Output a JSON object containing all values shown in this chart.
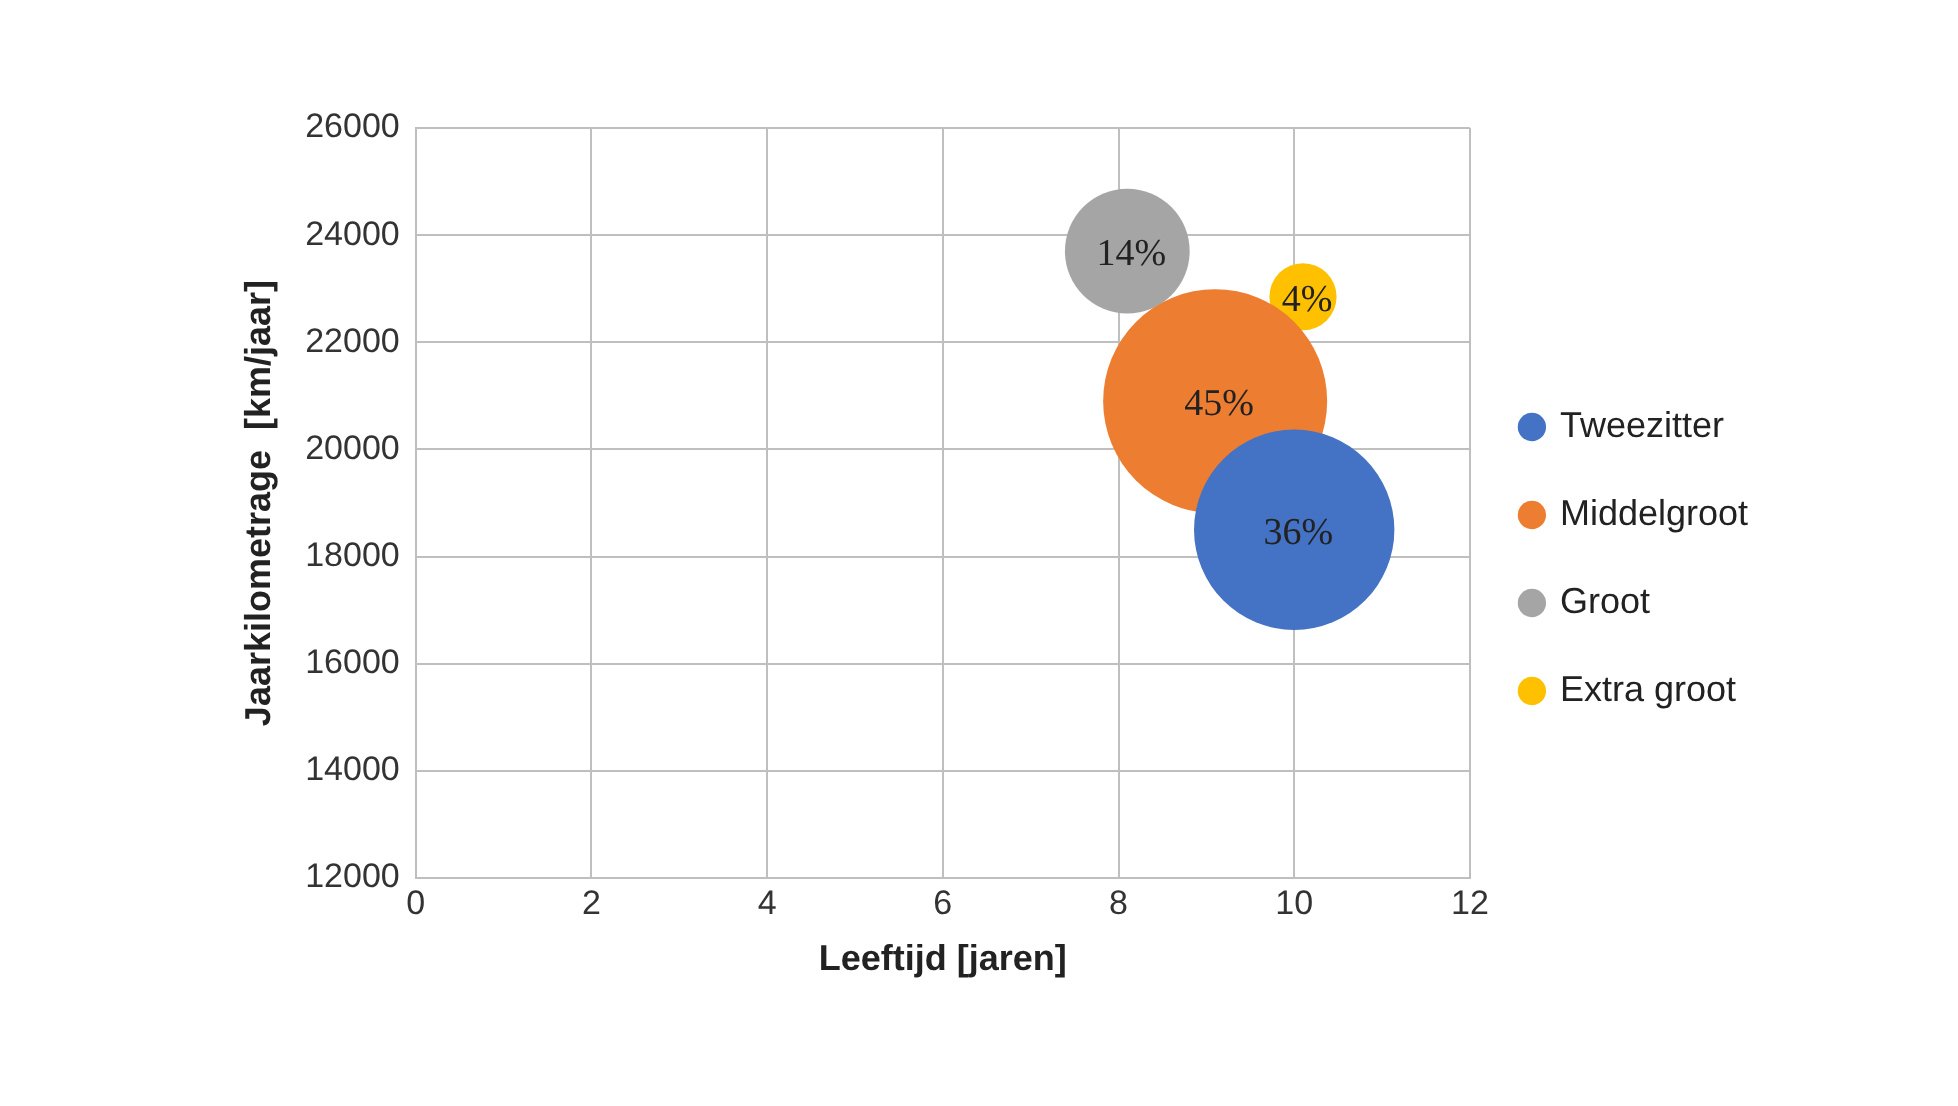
{
  "chart_data": {
    "type": "bubble",
    "xlabel": "Leeftijd [jaren]",
    "ylabel": "Jaarkilometrage  [km/jaar]",
    "xlim": [
      0,
      12
    ],
    "xticks": [
      0,
      2,
      4,
      6,
      8,
      10,
      12
    ],
    "ylim": [
      12000,
      26000
    ],
    "yticks": [
      12000,
      14000,
      16000,
      18000,
      20000,
      22000,
      24000,
      26000
    ],
    "grid": true,
    "legend": "right",
    "series": [
      {
        "name": "Tweezitter",
        "color": "#4472c4",
        "x": [
          10
        ],
        "values": [
          18500
        ],
        "sizes": [
          0.8
        ]
      },
      {
        "name": "Middelgroot",
        "color": "#ed7d31",
        "x": [
          9.1
        ],
        "values": [
          20900
        ],
        "sizes": [
          1
        ]
      },
      {
        "name": "Groot",
        "color": "#a5a5a5",
        "x": [
          8.1
        ],
        "values": [
          23700
        ],
        "sizes": [
          0.31
        ]
      },
      {
        "name": "Extra groot",
        "color": "#ffc000",
        "x": [
          10.1
        ],
        "values": [
          22850
        ],
        "sizes": [
          0.09
        ]
      }
    ],
    "annotations": [
      {
        "text": "36%",
        "x": 10,
        "y": 18500
      },
      {
        "text": "45%",
        "x": 9.1,
        "y": 20900
      },
      {
        "text": "14%",
        "x": 8.1,
        "y": 23700
      },
      {
        "text": "4%",
        "x": 10.1,
        "y": 22850
      }
    ]
  }
}
